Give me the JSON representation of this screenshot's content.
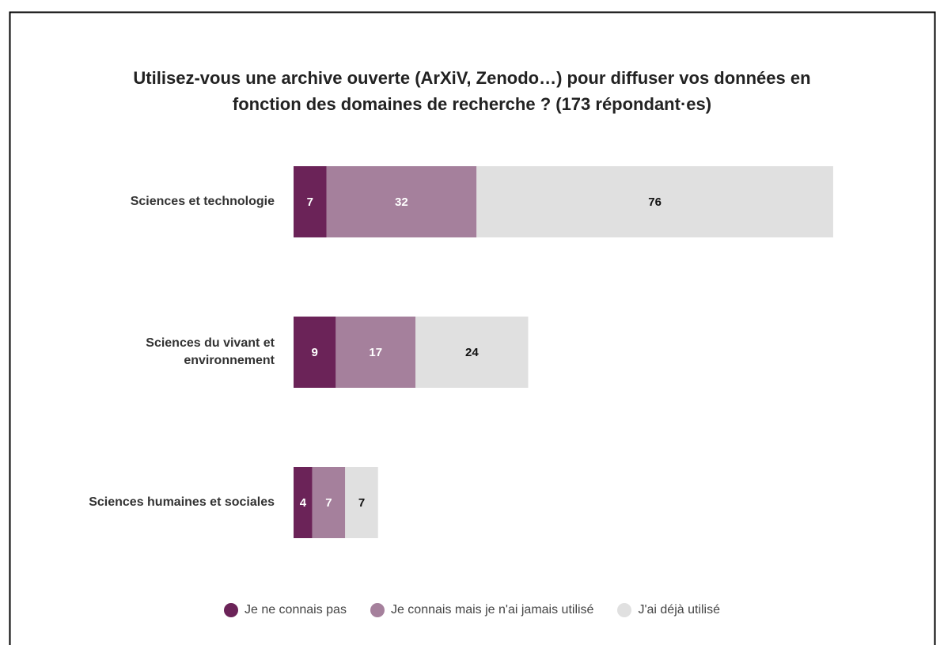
{
  "chart_data": {
    "type": "stacked_bar_horizontal",
    "title": "Utilisez-vous une archive ouverte (ArXiV, Zenodo…) pour diffuser vos données en\nfonction des domaines de recherche ? (173 répondant·es)",
    "categories": [
      "Sciences et technologie",
      "Sciences du vivant et\nenvironnement",
      "Sciences humaines et sociales"
    ],
    "series": [
      {
        "name": "Je ne connais pas",
        "color": "#6b2358",
        "values": [
          7,
          9,
          4
        ]
      },
      {
        "name": "Je connais mais je n'ai jamais utilisé",
        "color": "#a5809c",
        "values": [
          32,
          17,
          7
        ]
      },
      {
        "name": "J'ai déjà utilisé",
        "color": "#e0e0e0",
        "values": [
          76,
          24,
          7
        ]
      }
    ]
  }
}
